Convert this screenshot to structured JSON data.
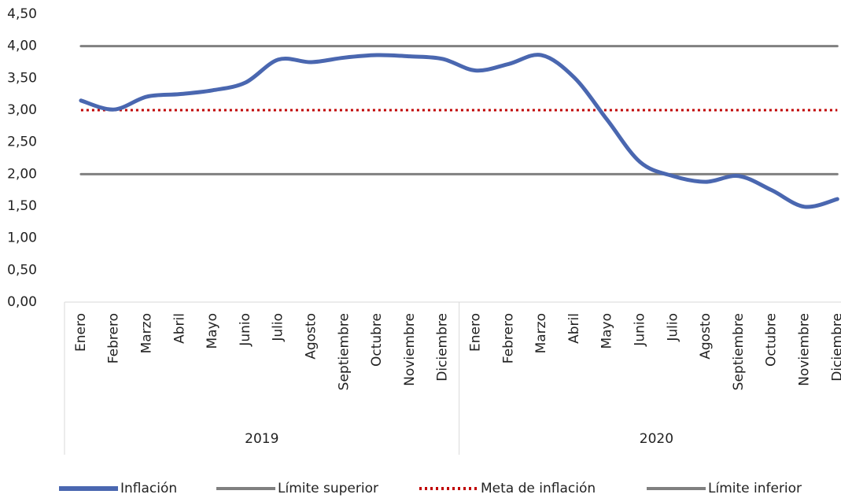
{
  "chart_data": {
    "type": "line",
    "groups": [
      {
        "label": "2019",
        "categories": [
          "Enero",
          "Febrero",
          "Marzo",
          "Abril",
          "Mayo",
          "Junio",
          "Julio",
          "Agosto",
          "Septiembre",
          "Octubre",
          "Noviembre",
          "Diciembre"
        ]
      },
      {
        "label": "2020",
        "categories": [
          "Enero",
          "Febrero",
          "Marzo",
          "Abril",
          "Mayo",
          "Junio",
          "Julio",
          "Agosto",
          "Septiembre",
          "Octubre",
          "Noviembre",
          "Diciembre"
        ]
      }
    ],
    "series": [
      {
        "name": "Inflación",
        "color": "#4a67b0",
        "style": "solid",
        "smooth": true,
        "values": [
          3.15,
          3.01,
          3.21,
          3.25,
          3.31,
          3.43,
          3.79,
          3.75,
          3.82,
          3.86,
          3.84,
          3.8,
          3.62,
          3.72,
          3.86,
          3.51,
          2.85,
          2.19,
          1.97,
          1.88,
          1.97,
          1.75,
          1.49,
          1.61
        ]
      },
      {
        "name": "Límite superior",
        "color": "#808080",
        "style": "solid",
        "values": [
          4,
          4,
          4,
          4,
          4,
          4,
          4,
          4,
          4,
          4,
          4,
          4,
          4,
          4,
          4,
          4,
          4,
          4,
          4,
          4,
          4,
          4,
          4,
          4
        ]
      },
      {
        "name": "Meta de inflación",
        "color": "#c00000",
        "style": "dotted",
        "values": [
          3,
          3,
          3,
          3,
          3,
          3,
          3,
          3,
          3,
          3,
          3,
          3,
          3,
          3,
          3,
          3,
          3,
          3,
          3,
          3,
          3,
          3,
          3,
          3
        ]
      },
      {
        "name": "Límite inferior",
        "color": "#808080",
        "style": "solid",
        "values": [
          2,
          2,
          2,
          2,
          2,
          2,
          2,
          2,
          2,
          2,
          2,
          2,
          2,
          2,
          2,
          2,
          2,
          2,
          2,
          2,
          2,
          2,
          2,
          2
        ]
      }
    ],
    "ylim": [
      0,
      4.5
    ],
    "yticks": [
      {
        "value": 0,
        "label": "0,00"
      },
      {
        "value": 0.5,
        "label": "0,50"
      },
      {
        "value": 1,
        "label": "1,00"
      },
      {
        "value": 1.5,
        "label": "1,50"
      },
      {
        "value": 2,
        "label": "2,00"
      },
      {
        "value": 2.5,
        "label": "2,50"
      },
      {
        "value": 3,
        "label": "3,00"
      },
      {
        "value": 3.5,
        "label": "3,50"
      },
      {
        "value": 4,
        "label": "4,00"
      },
      {
        "value": 4.5,
        "label": "4,50"
      }
    ],
    "grid": false,
    "legend": "bottom"
  }
}
